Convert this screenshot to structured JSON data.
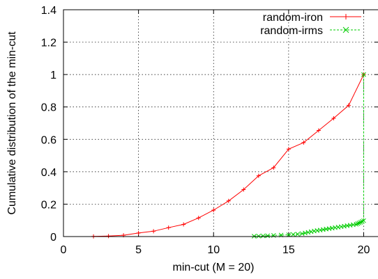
{
  "chart_data": {
    "type": "line",
    "title": "",
    "xlabel": "min-cut (M = 20)",
    "ylabel": "Cumulative distribution of the min-cut",
    "xlim": [
      0,
      21
    ],
    "ylim": [
      0,
      1.4
    ],
    "xticks": [
      0,
      5,
      10,
      15,
      20
    ],
    "yticks": [
      0,
      0.2,
      0.4,
      0.6,
      0.8,
      1,
      1.2,
      1.4
    ],
    "xtick_labels": [
      "0",
      "5",
      "10",
      "15",
      "20"
    ],
    "ytick_labels": [
      "0",
      "0.2",
      "0.4",
      "0.6",
      "0.8",
      "1",
      "1.2",
      "1.4"
    ],
    "grid": true,
    "legend_position": "top-right",
    "series": [
      {
        "name": "random-iron",
        "color": "#ff0000",
        "marker": "plus",
        "line_style": "solid",
        "x": [
          2,
          3,
          4,
          5,
          6,
          7,
          8,
          9,
          10,
          11,
          12,
          13,
          14,
          15,
          16,
          17,
          18,
          19,
          20
        ],
        "y": [
          0.001,
          0.003,
          0.008,
          0.022,
          0.033,
          0.055,
          0.075,
          0.115,
          0.163,
          0.22,
          0.29,
          0.375,
          0.425,
          0.54,
          0.58,
          0.655,
          0.73,
          0.81,
          1.0
        ]
      },
      {
        "name": "random-irms",
        "color": "#00cc00",
        "marker": "cross",
        "line_style": "dashed",
        "x": [
          12.7,
          13.0,
          13.3,
          13.6,
          14.0,
          14.5,
          15.0,
          15.3,
          15.6,
          15.9,
          16.1,
          16.3,
          16.5,
          16.7,
          16.9,
          17.1,
          17.3,
          17.5,
          17.7,
          17.9,
          18.1,
          18.3,
          18.5,
          18.7,
          18.9,
          19.1,
          19.3,
          19.5,
          19.6,
          19.7,
          19.8,
          19.9,
          20.0,
          20.0
        ],
        "y": [
          0.002,
          0.003,
          0.004,
          0.005,
          0.007,
          0.009,
          0.011,
          0.013,
          0.015,
          0.018,
          0.022,
          0.026,
          0.03,
          0.034,
          0.037,
          0.04,
          0.043,
          0.046,
          0.049,
          0.052,
          0.055,
          0.058,
          0.061,
          0.064,
          0.067,
          0.07,
          0.073,
          0.076,
          0.08,
          0.084,
          0.088,
          0.093,
          0.098,
          1.0
        ]
      }
    ]
  }
}
